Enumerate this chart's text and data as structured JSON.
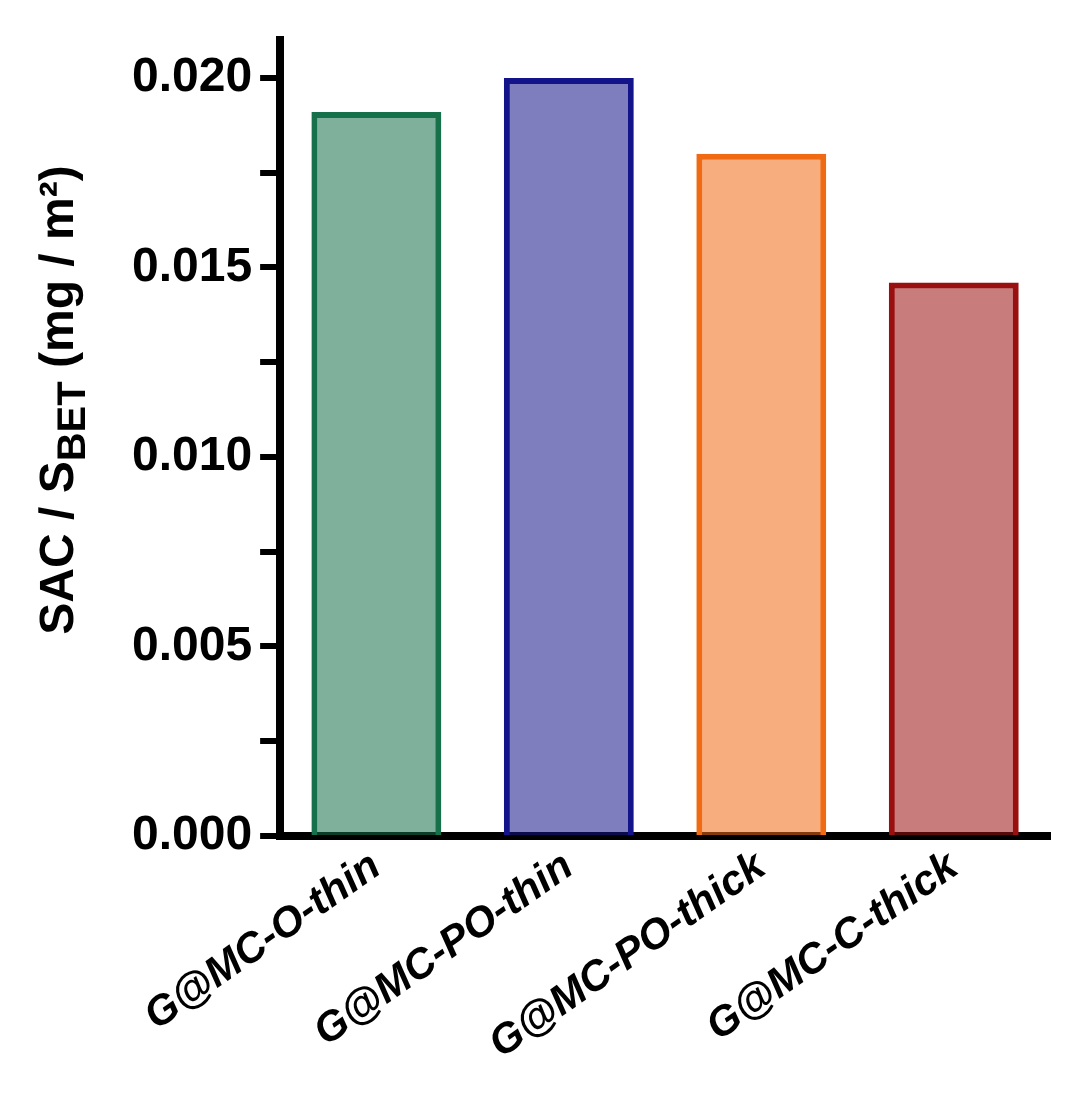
{
  "chart_data": {
    "type": "bar",
    "ylabel": "SAC / S$_{BET}$ (mg / m²)",
    "categories": [
      "G@MC-O-thin",
      "G@MC-PO-thin",
      "G@MC-PO-thick",
      "G@MC-C-thick"
    ],
    "values": [
      0.0191,
      0.02,
      0.018,
      0.0146
    ],
    "colors": [
      "#16704a",
      "#14148a",
      "#f06a14",
      "#9a1010"
    ],
    "ylim": [
      0,
      0.021
    ],
    "yticks": [
      {
        "value": 0,
        "label": "0.000"
      },
      {
        "value": 0.0025,
        "label": null
      },
      {
        "value": 0.005,
        "label": "0.005"
      },
      {
        "value": 0.0075,
        "label": null
      },
      {
        "value": 0.01,
        "label": "0.010"
      },
      {
        "value": 0.0125,
        "label": null
      },
      {
        "value": 0.015,
        "label": "0.015"
      },
      {
        "value": 0.0175,
        "label": null
      },
      {
        "value": 0.02,
        "label": "0.020"
      }
    ],
    "grid": false,
    "legend": false
  }
}
